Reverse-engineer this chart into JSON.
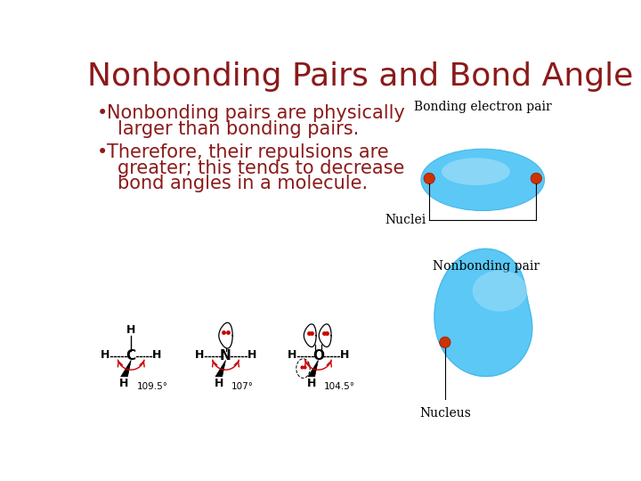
{
  "title": "Nonbonding Pairs and Bond Angle",
  "title_color": "#8B1A1A",
  "title_fontsize": 26,
  "bg_color": "#FFFFFF",
  "text_color": "#8B1A1A",
  "bullet1_line1": "Nonbonding pairs are physically",
  "bullet1_line2": "larger than bonding pairs.",
  "bullet2_line1": "Therefore, their repulsions are",
  "bullet2_line2": "greater; this tends to decrease",
  "bullet2_line3": "bond angles in a molecule.",
  "bullet_fontsize": 15,
  "label_fontsize": 10,
  "orbital_color": "#5BC8F5",
  "nucleus_color": "#CC3300",
  "label_bonding": "Bonding electron pair",
  "label_nuclei": "Nuclei",
  "label_nonbonding": "Nonbonding pair",
  "label_nucleus": "Nucleus",
  "angles": [
    "109.5°",
    "107°",
    "104.5°"
  ],
  "center_atoms": [
    "C",
    "N",
    "O"
  ]
}
